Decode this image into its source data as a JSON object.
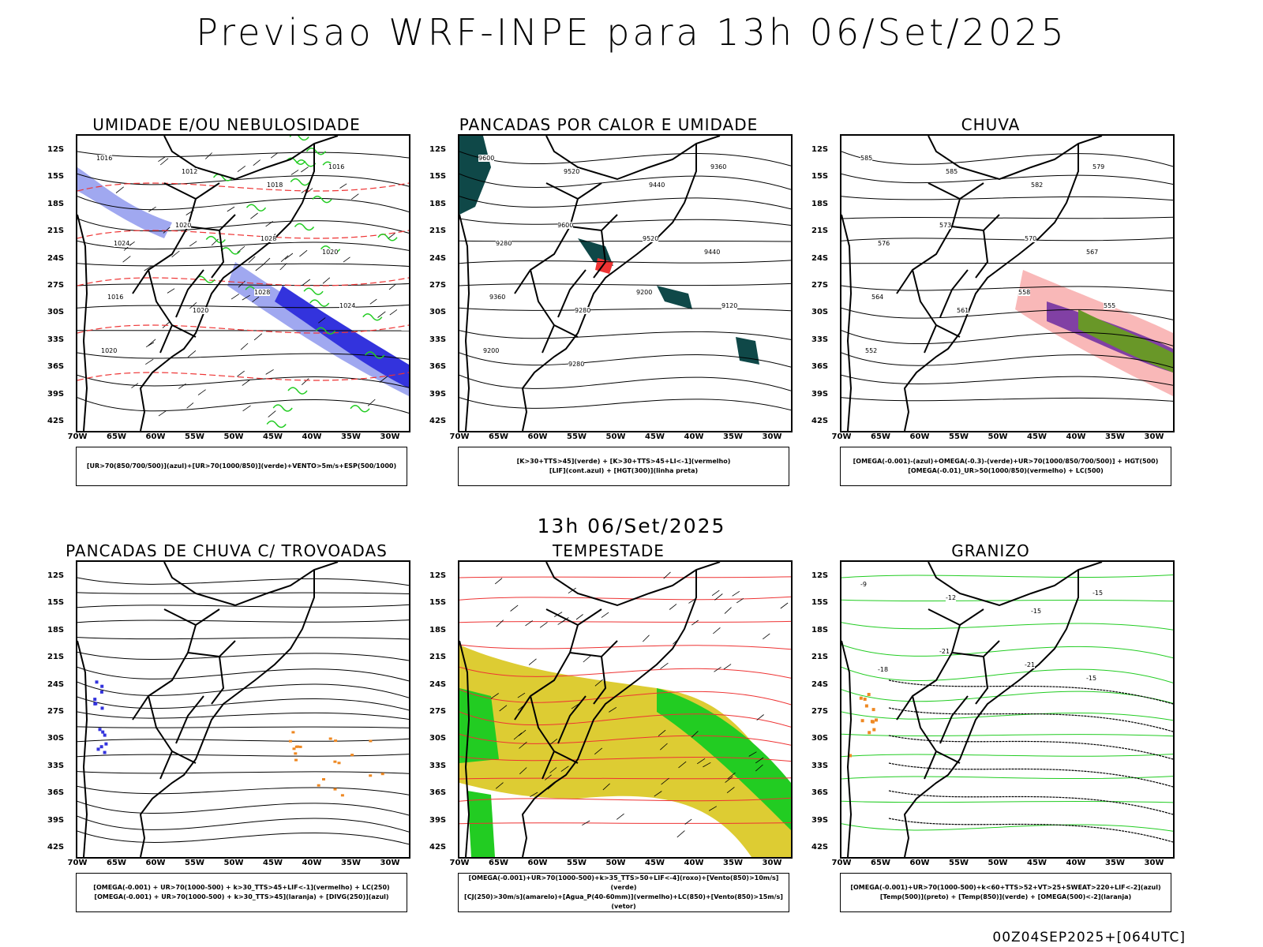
{
  "header": {
    "title": "Previsao WRF-INPE  para 13h 06/Set/2025"
  },
  "mid_date": "13h 06/Set/2025",
  "footer": "00Z04SEP2025+[064UTC]",
  "axes": {
    "lat_labels": [
      "12S",
      "15S",
      "18S",
      "21S",
      "24S",
      "27S",
      "30S",
      "33S",
      "36S",
      "39S",
      "42S"
    ],
    "lon_labels": [
      "70W",
      "65W",
      "60W",
      "55W",
      "50W",
      "45W",
      "40W",
      "35W",
      "30W"
    ]
  },
  "panels": [
    {
      "title": "UMIDADE E/OU NEBULOSIDADE",
      "legend": [
        "[UR>70(850/700/500)](azul)+[UR>70(1000/850)](verde)+VENTO>5m/s+ESP(500/1000)"
      ],
      "contour_labels": [
        "1016",
        "1012",
        "1018",
        "1016",
        "1024",
        "1020",
        "1028",
        "1020",
        "1016",
        "1020",
        "1028",
        "1024",
        "1020"
      ]
    },
    {
      "title": "PANCADAS POR CALOR E UMIDADE",
      "legend": [
        "[K>30+TTS>45](verde) + [K>30+TTS>45+LI<-1](vermelho)",
        "[LIF](cont.azul) + [HGT(300)](linha preta)"
      ],
      "contour_labels": [
        "9600",
        "9520",
        "9440",
        "9360",
        "9280",
        "9600",
        "9520",
        "9440",
        "9360",
        "9280",
        "9200",
        "9120",
        "9200",
        "9280"
      ]
    },
    {
      "title": "CHUVA",
      "legend": [
        "[OMEGA(-0.001)-(azul)+OMEGA(-0.3)-(verde)+UR>70(1000/850/700/500)] + HGT(500)",
        "[OMEGA(-0.01)_UR>50(1000/850)(vermelho) + LC(500)"
      ],
      "contour_labels": [
        "585",
        "585",
        "582",
        "579",
        "576",
        "573",
        "570",
        "567",
        "564",
        "561",
        "558",
        "555",
        "552"
      ]
    },
    {
      "title": "PANCADAS DE CHUVA C/ TROVOADAS",
      "legend": [
        "[OMEGA(-0.001) + UR>70(1000-500) + k>30_TTS>45+LIF<-1](vermelho) + LC(250)",
        "[OMEGA(-0.001) + UR>70(1000-500) + k>30_TTS>45](laranja) + [DIVG(250)](azul)"
      ],
      "contour_labels": []
    },
    {
      "title": "TEMPESTADE",
      "legend": [
        "[OMEGA(-0.001)+UR>70(1000-500)+k>35_TTS>50+LIF<-4](roxo)+[Vento(850)>10m/s](verde)",
        "[CJ(250)>30m/s](amarelo)+[Agua_P(40-60mm)](vermelho)+LC(850)+[Vento(850)>15m/s](vetor)"
      ],
      "contour_labels": []
    },
    {
      "title": "GRANIZO",
      "legend": [
        "[OMEGA(-0.001)+UR>70(1000-500)+k<60+TTS>52+VT>25+SWEAT>220+LIF<-2](azul)",
        "[Temp(500)](preto) + [Temp(850)](verde) + [OMEGA(500)<-2](laranja)"
      ],
      "contour_labels": [
        "-9",
        "-12",
        "-15",
        "-15",
        "-18",
        "-21",
        "-21",
        "-15"
      ]
    }
  ],
  "colors": {
    "blue": "#3333dd",
    "lightblue": "#a0a8f0",
    "green": "#22cc22",
    "red": "#ee3333",
    "orange": "#ee8822",
    "yellow": "#ddcc33",
    "darkgreen": "#0f4848",
    "black": "#000000"
  }
}
